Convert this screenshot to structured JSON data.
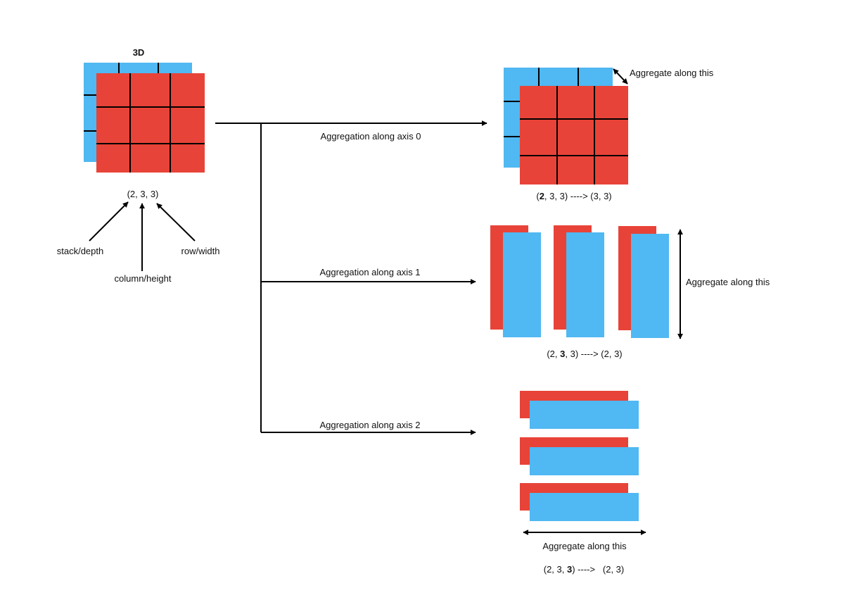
{
  "colors": {
    "red": "#E84338",
    "blue": "#50B8F2",
    "line": "#000000",
    "background": "#FFFFFF"
  },
  "input": {
    "title": "3D",
    "shape": "(2, 3, 3)",
    "pointers": {
      "depth": "stack/depth",
      "height": "column/height",
      "width": "row/width"
    }
  },
  "axis0": {
    "label": "Aggregation along axis 0",
    "aggregate_note": "Aggregate along this",
    "shape_prefix": "(",
    "shape_bold": "2",
    "shape_suffix": ", 3, 3) ----> (3, 3)"
  },
  "axis1": {
    "label": "Aggregation along axis 1",
    "aggregate_note": "Aggregate along this",
    "shape_prefix": "(2, ",
    "shape_bold": "3",
    "shape_suffix": ", 3) ----> (2, 3)"
  },
  "axis2": {
    "label": "Aggregation along axis 2",
    "aggregate_note": "Aggregate along this",
    "shape_prefix": "(2, 3, ",
    "shape_bold": "3",
    "shape_suffix": ") ---->   (2, 3)"
  }
}
